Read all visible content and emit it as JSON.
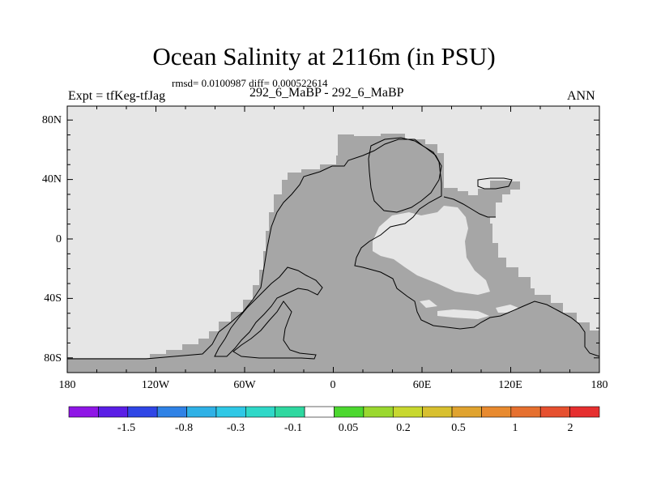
{
  "figure": {
    "title": "Ocean Salinity at 2116m (in PSU)",
    "subtitle": "rmsd= 0.0100987 diff= 0.000522614",
    "left_label": "Expt = tfKeg-tfJag",
    "center_label": "292_6_MaBP - 292_6_MaBP",
    "right_label": "ANN"
  },
  "map": {
    "lat_ticks": [
      "80N",
      "40N",
      "0",
      "40S",
      "80S"
    ],
    "lon_ticks": [
      "180",
      "120W",
      "60W",
      "0",
      "60E",
      "120E",
      "180"
    ],
    "colors": {
      "missing": "#e6e6e6",
      "land": "#a6a6a6",
      "coast": "#000000"
    }
  },
  "colorbar": {
    "colors": [
      "#8f16e6",
      "#5a1ee6",
      "#2f46e6",
      "#2f82e6",
      "#2fb1e6",
      "#2fc8e6",
      "#2fd8c8",
      "#2fd8a0",
      "#ffffff",
      "#4cd82f",
      "#9ad82f",
      "#c8d82f",
      "#d8c02f",
      "#e0a32f",
      "#e88a2f",
      "#e6702f",
      "#e6502f",
      "#e62f2f"
    ],
    "labels": [
      "-1.5",
      "-0.8",
      "-0.3",
      "-0.1",
      "0.05",
      "0.2",
      "0.5",
      "1",
      "2"
    ]
  }
}
